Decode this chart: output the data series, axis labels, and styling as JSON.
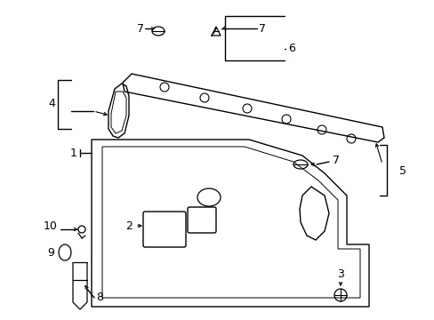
{
  "bg_color": "#ffffff",
  "lc": "#000000",
  "lw": 1.0,
  "fig_w": 4.89,
  "fig_h": 3.6,
  "dpi": 100
}
